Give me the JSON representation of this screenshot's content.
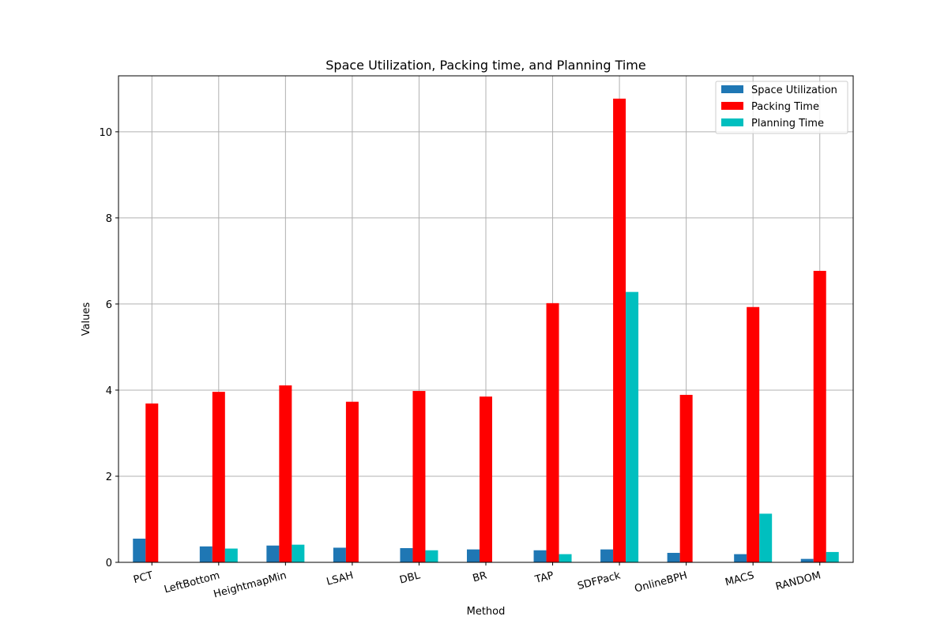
{
  "chart_data": {
    "type": "bar",
    "title": "Space Utilization, Packing time, and Planning Time",
    "xlabel": "Method",
    "ylabel": "Values",
    "ylim": [
      0,
      11.3
    ],
    "yticks": [
      0,
      2,
      4,
      6,
      8,
      10
    ],
    "grid": true,
    "legend_position": "top-right",
    "categories": [
      "PCT",
      "LeftBottom",
      "HeightmapMin",
      "LSAH",
      "DBL",
      "BR",
      "TAP",
      "SDFPack",
      "OnlineBPH",
      "MACS",
      "RANDOM"
    ],
    "series": [
      {
        "name": "Space Utilization",
        "color": "#1f77b4",
        "values": [
          0.55,
          0.37,
          0.39,
          0.34,
          0.33,
          0.3,
          0.28,
          0.3,
          0.22,
          0.19,
          0.08
        ]
      },
      {
        "name": "Packing Time",
        "color": "#ff0000",
        "values": [
          3.69,
          3.96,
          4.11,
          3.73,
          3.98,
          3.85,
          6.02,
          10.77,
          3.89,
          5.93,
          6.77
        ]
      },
      {
        "name": "Planning Time",
        "color": "#00bfbf",
        "values": [
          0,
          0.32,
          0.41,
          0,
          0.28,
          0,
          0.19,
          6.28,
          0,
          1.13,
          0.24
        ]
      }
    ]
  }
}
